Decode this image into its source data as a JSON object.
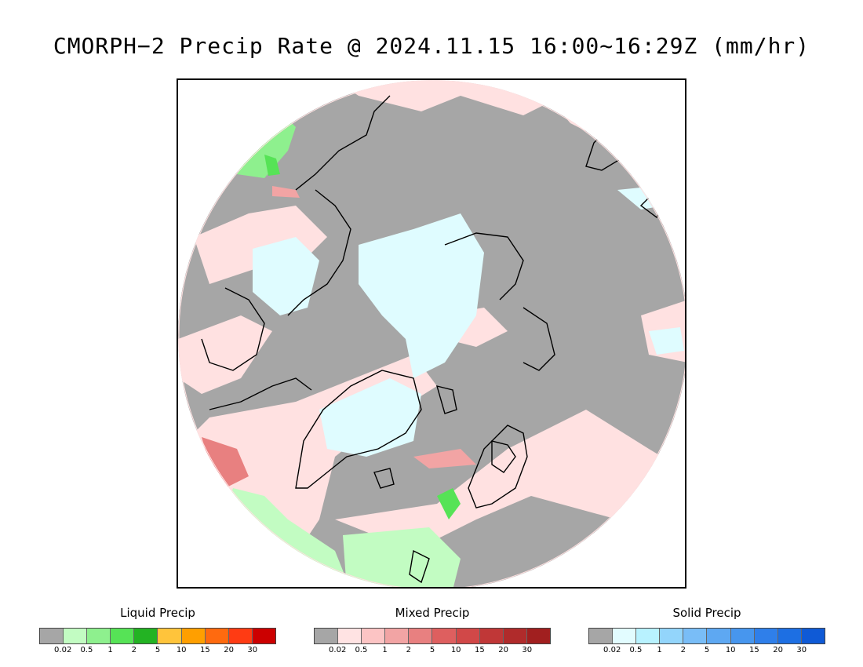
{
  "title": "CMORPH−2 Precip Rate @ 2024.11.15 16:00~16:29Z (mm/hr)",
  "colors": {
    "background_gray": "#a6a6a6",
    "liquid": [
      "#a6a6a6",
      "#c2fcc2",
      "#8ef08e",
      "#56e356",
      "#23b323",
      "#ffc43b",
      "#ff9f00",
      "#ff6a0f",
      "#ff3b13",
      "#cc0000"
    ],
    "mixed": [
      "#a6a6a6",
      "#ffe3e3",
      "#fcc4c4",
      "#f2a4a4",
      "#e88080",
      "#de5f5f",
      "#d14848",
      "#c03737",
      "#b02b2b",
      "#a11f1f"
    ],
    "solid": [
      "#a6a6a6",
      "#e2fcff",
      "#b8f2ff",
      "#93d5fb",
      "#79bdf7",
      "#5ea8f2",
      "#4796ee",
      "#2f7fea",
      "#1d6fe3",
      "#0f5ad6"
    ]
  },
  "legends": [
    {
      "id": "liquid",
      "title": "Liquid Precip",
      "ticks": [
        "0.02",
        "0.5",
        "1",
        "2",
        "5",
        "10",
        "15",
        "20",
        "30"
      ]
    },
    {
      "id": "mixed",
      "title": "Mixed Precip",
      "ticks": [
        "0.02",
        "0.5",
        "1",
        "2",
        "5",
        "10",
        "15",
        "20",
        "30"
      ]
    },
    {
      "id": "solid",
      "title": "Solid Precip",
      "ticks": [
        "0.02",
        "0.5",
        "1",
        "2",
        "5",
        "10",
        "15",
        "20",
        "30"
      ]
    }
  ]
}
